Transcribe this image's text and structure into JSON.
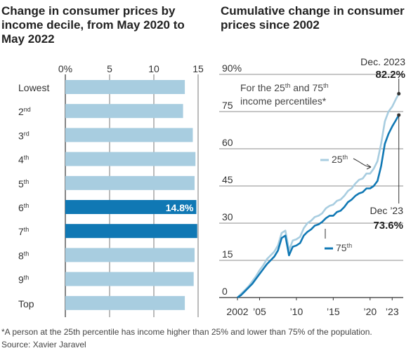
{
  "chart_data": [
    {
      "type": "bar",
      "title": "Change in consumer prices by income decile, from May 2020 to May 2022",
      "categories": [
        "Lowest",
        "2nd",
        "3rd",
        "4th",
        "5th",
        "6th",
        "7th",
        "8th",
        "9th",
        "Top"
      ],
      "category_labels": [
        {
          "base": "Lowest",
          "sup": ""
        },
        {
          "base": "2",
          "sup": "nd"
        },
        {
          "base": "3",
          "sup": "rd"
        },
        {
          "base": "4",
          "sup": "th"
        },
        {
          "base": "5",
          "sup": "th"
        },
        {
          "base": "6",
          "sup": "th"
        },
        {
          "base": "7",
          "sup": "th"
        },
        {
          "base": "8",
          "sup": "th"
        },
        {
          "base": "9",
          "sup": "th"
        },
        {
          "base": "Top",
          "sup": ""
        }
      ],
      "values": [
        13.5,
        13.3,
        14.4,
        14.7,
        14.6,
        14.8,
        14.9,
        14.6,
        14.5,
        13.5
      ],
      "highlighted": [
        5,
        6
      ],
      "data_label": {
        "index": 5,
        "text": "14.8%"
      },
      "xlim": [
        0,
        15
      ],
      "ticks": [
        0,
        5,
        10,
        15
      ],
      "tick_labels": [
        "0%",
        "5",
        "10",
        "15"
      ],
      "colors": {
        "bar": "#a8cde0",
        "highlight": "#1078b4"
      }
    },
    {
      "type": "line",
      "title": "Cumulative change in consumer prices since 2002",
      "subtitle": "For the 25th and 75th income percentiles*",
      "ylim": [
        0,
        90
      ],
      "yticks": [
        0,
        15,
        30,
        45,
        60,
        75,
        90
      ],
      "ytick_labels": [
        "0",
        "15",
        "30",
        "45",
        "60",
        "75",
        "90%"
      ],
      "xlim": [
        2002,
        2024.5
      ],
      "xticks": [
        2002,
        2005,
        2010,
        2015,
        2020,
        2023
      ],
      "xtick_labels": [
        "2002",
        "’05",
        "’10",
        "’15",
        "’20",
        "’23"
      ],
      "series": [
        {
          "name": "25th",
          "color": "#a8cde0",
          "x": [
            2002,
            2002.5,
            2003,
            2003.5,
            2004,
            2004.5,
            2005,
            2005.5,
            2006,
            2006.5,
            2007,
            2007.5,
            2008,
            2008.5,
            2009,
            2009.5,
            2010,
            2010.5,
            2011,
            2011.5,
            2012,
            2012.5,
            2013,
            2013.5,
            2014,
            2014.5,
            2015,
            2015.5,
            2016,
            2016.5,
            2017,
            2017.5,
            2018,
            2018.5,
            2019,
            2019.5,
            2020,
            2020.5,
            2021,
            2021.5,
            2022,
            2022.5,
            2023,
            2023.5,
            2023.9
          ],
          "values": [
            0,
            1.5,
            3,
            4.5,
            6.5,
            8.5,
            11,
            13,
            15.5,
            17,
            18.5,
            21,
            26,
            27,
            19,
            23,
            23.5,
            24.5,
            28,
            30,
            31,
            32.5,
            33,
            34,
            36,
            37,
            37.5,
            39,
            39.5,
            41,
            43,
            44,
            46,
            47.5,
            48,
            50,
            50,
            52,
            55,
            62,
            71,
            75,
            77,
            80,
            82.2
          ]
        },
        {
          "name": "75th",
          "color": "#1078b4",
          "x": [
            2002,
            2002.5,
            2003,
            2003.5,
            2004,
            2004.5,
            2005,
            2005.5,
            2006,
            2006.5,
            2007,
            2007.5,
            2008,
            2008.5,
            2009,
            2009.5,
            2010,
            2010.5,
            2011,
            2011.5,
            2012,
            2012.5,
            2013,
            2013.5,
            2014,
            2014.5,
            2015,
            2015.5,
            2016,
            2016.5,
            2017,
            2017.5,
            2018,
            2018.5,
            2019,
            2019.5,
            2020,
            2020.5,
            2021,
            2021.5,
            2022,
            2022.5,
            2023,
            2023.5,
            2023.9
          ],
          "values": [
            0,
            1,
            2.5,
            4,
            5.5,
            7.5,
            9.5,
            11.5,
            13.5,
            15,
            16.5,
            19,
            24,
            25,
            17,
            20.5,
            21,
            22,
            25,
            26.5,
            27.5,
            29,
            29.5,
            30.5,
            32,
            33,
            33,
            34.5,
            35,
            36.5,
            38.5,
            39.5,
            41,
            42,
            42.5,
            44,
            44,
            45,
            47,
            53,
            62,
            66,
            69,
            71.5,
            73.6
          ]
        }
      ],
      "annotations": [
        {
          "label": "Dec. 2023",
          "value_text": "82.2%",
          "series": "25th"
        },
        {
          "label": "Dec ’23",
          "value_text": "73.6%",
          "series": "75th"
        }
      ]
    }
  ],
  "titles": {
    "left": "Change in consumer prices by income decile, from May 2020 to May 2022",
    "right": "Cumulative change in consumer prices since 2002"
  },
  "subtitle_parts": {
    "a": "For the 25",
    "sup1": "th",
    "b": " and 75",
    "sup2": "th",
    "c": "income percentiles*"
  },
  "series_labels": {
    "s25": {
      "base": "25",
      "sup": "th"
    },
    "s75": {
      "base": "75",
      "sup": "th"
    }
  },
  "footnote": "*A person at the 25th percentile has income higher than 25% and lower than 75% of the population.",
  "source": "Source: Xavier Jaravel"
}
